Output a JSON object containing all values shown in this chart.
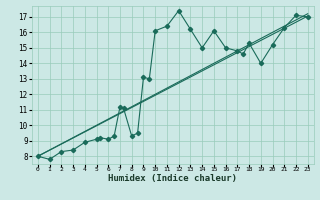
{
  "xlabel": "Humidex (Indice chaleur)",
  "bg_color": "#cce8e5",
  "line_color": "#1a6b5a",
  "marker": "D",
  "marker_size": 2.2,
  "xlim": [
    -0.5,
    23.5
  ],
  "ylim": [
    7.5,
    17.7
  ],
  "xticks": [
    0,
    1,
    2,
    3,
    4,
    5,
    6,
    7,
    8,
    9,
    10,
    11,
    12,
    13,
    14,
    15,
    16,
    17,
    18,
    19,
    20,
    21,
    22,
    23
  ],
  "yticks": [
    8,
    9,
    10,
    11,
    12,
    13,
    14,
    15,
    16,
    17
  ],
  "grid_color": "#99ccbb",
  "series": [
    [
      0,
      8.0
    ],
    [
      1,
      7.8
    ],
    [
      2,
      8.3
    ],
    [
      3,
      8.4
    ],
    [
      4,
      8.9
    ],
    [
      5,
      9.1
    ],
    [
      5.3,
      9.2
    ],
    [
      6,
      9.1
    ],
    [
      6.5,
      9.3
    ],
    [
      7,
      11.2
    ],
    [
      7.3,
      11.1
    ],
    [
      8,
      9.3
    ],
    [
      8.5,
      9.5
    ],
    [
      9,
      13.1
    ],
    [
      9.5,
      13.0
    ],
    [
      10,
      16.1
    ],
    [
      11,
      16.4
    ],
    [
      12,
      17.4
    ],
    [
      13,
      16.2
    ],
    [
      14,
      15.0
    ],
    [
      15,
      16.1
    ],
    [
      16,
      15.0
    ],
    [
      17,
      14.8
    ],
    [
      17.5,
      14.6
    ],
    [
      18,
      15.3
    ],
    [
      19,
      14.0
    ],
    [
      20,
      15.2
    ],
    [
      21,
      16.3
    ],
    [
      22,
      17.1
    ],
    [
      23,
      17.0
    ]
  ],
  "line2": [
    [
      0,
      8.0
    ],
    [
      23,
      17.2
    ]
  ],
  "line3": [
    [
      0,
      8.0
    ],
    [
      23,
      17.05
    ]
  ]
}
